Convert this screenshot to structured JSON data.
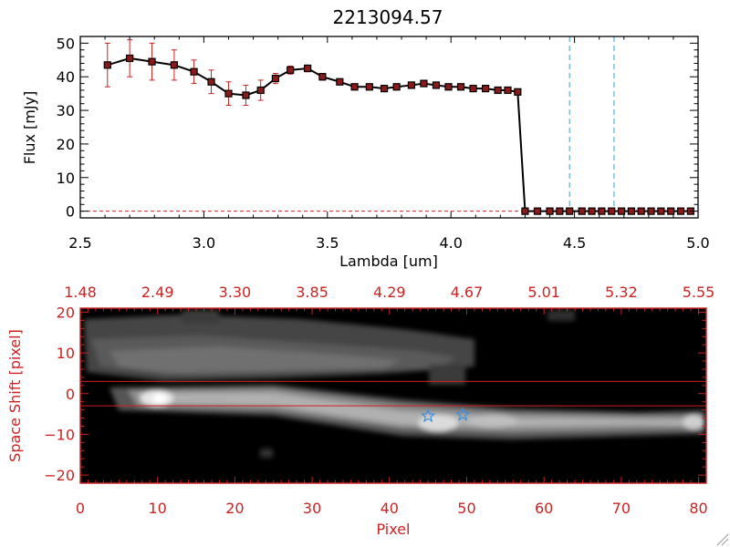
{
  "colors": {
    "black": "#000000",
    "red": "#cc2222",
    "marker_fill": "#8b1a1a",
    "dash_blue": "#3aa0c8",
    "star_blue": "#3a8fe0"
  },
  "chart_data": [
    {
      "type": "line",
      "title": "2213094.57",
      "xlabel": "Lambda [um]",
      "ylabel": "Flux [mJy]",
      "xlim": [
        2.5,
        5.0
      ],
      "ylim": [
        -2,
        52
      ],
      "xticks": [
        2.5,
        3.0,
        3.5,
        4.0,
        4.5,
        5.0
      ],
      "xtick_labels": [
        "2.5",
        "3.0",
        "3.5",
        "4.0",
        "4.5",
        "5.0"
      ],
      "yticks": [
        0,
        10,
        20,
        30,
        40,
        50
      ],
      "ytick_labels": [
        "0",
        "10",
        "20",
        "30",
        "40",
        "50"
      ],
      "series": [
        {
          "name": "Flux",
          "x": [
            2.61,
            2.7,
            2.79,
            2.88,
            2.96,
            3.03,
            3.1,
            3.17,
            3.23,
            3.29,
            3.35,
            3.42,
            3.48,
            3.55,
            3.61,
            3.67,
            3.73,
            3.78,
            3.84,
            3.89,
            3.94,
            3.99,
            4.04,
            4.09,
            4.14,
            4.19,
            4.23,
            4.27,
            4.3,
            4.35,
            4.4,
            4.44,
            4.48,
            4.53,
            4.57,
            4.61,
            4.65,
            4.69,
            4.73,
            4.77,
            4.81,
            4.85,
            4.89,
            4.93,
            4.97
          ],
          "y": [
            43.5,
            45.5,
            44.5,
            43.5,
            41.5,
            38.5,
            35,
            34.5,
            36,
            39.5,
            42,
            42.5,
            40,
            38.5,
            37,
            37,
            36.5,
            37,
            37.5,
            38,
            37.5,
            37,
            37,
            36.5,
            36.5,
            36,
            36,
            35.5,
            0,
            0,
            0,
            0,
            0,
            0,
            0,
            0,
            0,
            0,
            0,
            0,
            0,
            0,
            0,
            0,
            0
          ],
          "yerr": [
            6.5,
            5.5,
            5.5,
            4.5,
            3.5,
            3.5,
            3.5,
            3,
            3,
            1.5,
            1.2,
            1,
            1,
            0.8,
            0.6,
            0.6,
            0.6,
            0.5,
            0.5,
            0.5,
            0.5,
            0.5,
            0.5,
            0.5,
            0.5,
            0.5,
            0.5,
            0.5,
            0,
            0,
            0,
            0,
            0,
            0,
            0,
            0,
            0,
            0,
            0,
            0,
            0,
            0,
            0,
            0,
            0
          ]
        }
      ],
      "vlines": [
        4.48,
        4.66
      ],
      "zero_line": 0
    },
    {
      "type": "heatmap",
      "xlabel": "Pixel",
      "ylabel": "Space Shift [pixel]",
      "xlim": [
        0,
        81
      ],
      "ylim": [
        -22,
        21
      ],
      "xticks": [
        0,
        10,
        20,
        30,
        40,
        50,
        60,
        70,
        80
      ],
      "xtick_labels": [
        "0",
        "10",
        "20",
        "30",
        "40",
        "50",
        "60",
        "70",
        "80"
      ],
      "yticks": [
        -20,
        -10,
        0,
        10,
        20
      ],
      "ytick_labels": [
        "−20",
        "−10",
        "0",
        "10",
        "20"
      ],
      "top_tick_labels": [
        "1.48",
        "2.49",
        "3.30",
        "3.85",
        "4.29",
        "4.67",
        "5.01",
        "5.32",
        "5.55"
      ],
      "extraction_lines": [
        3,
        -3
      ],
      "stars": [
        {
          "px": 45,
          "shift": -5.5
        },
        {
          "px": 49.5,
          "shift": -5.2
        }
      ]
    }
  ]
}
